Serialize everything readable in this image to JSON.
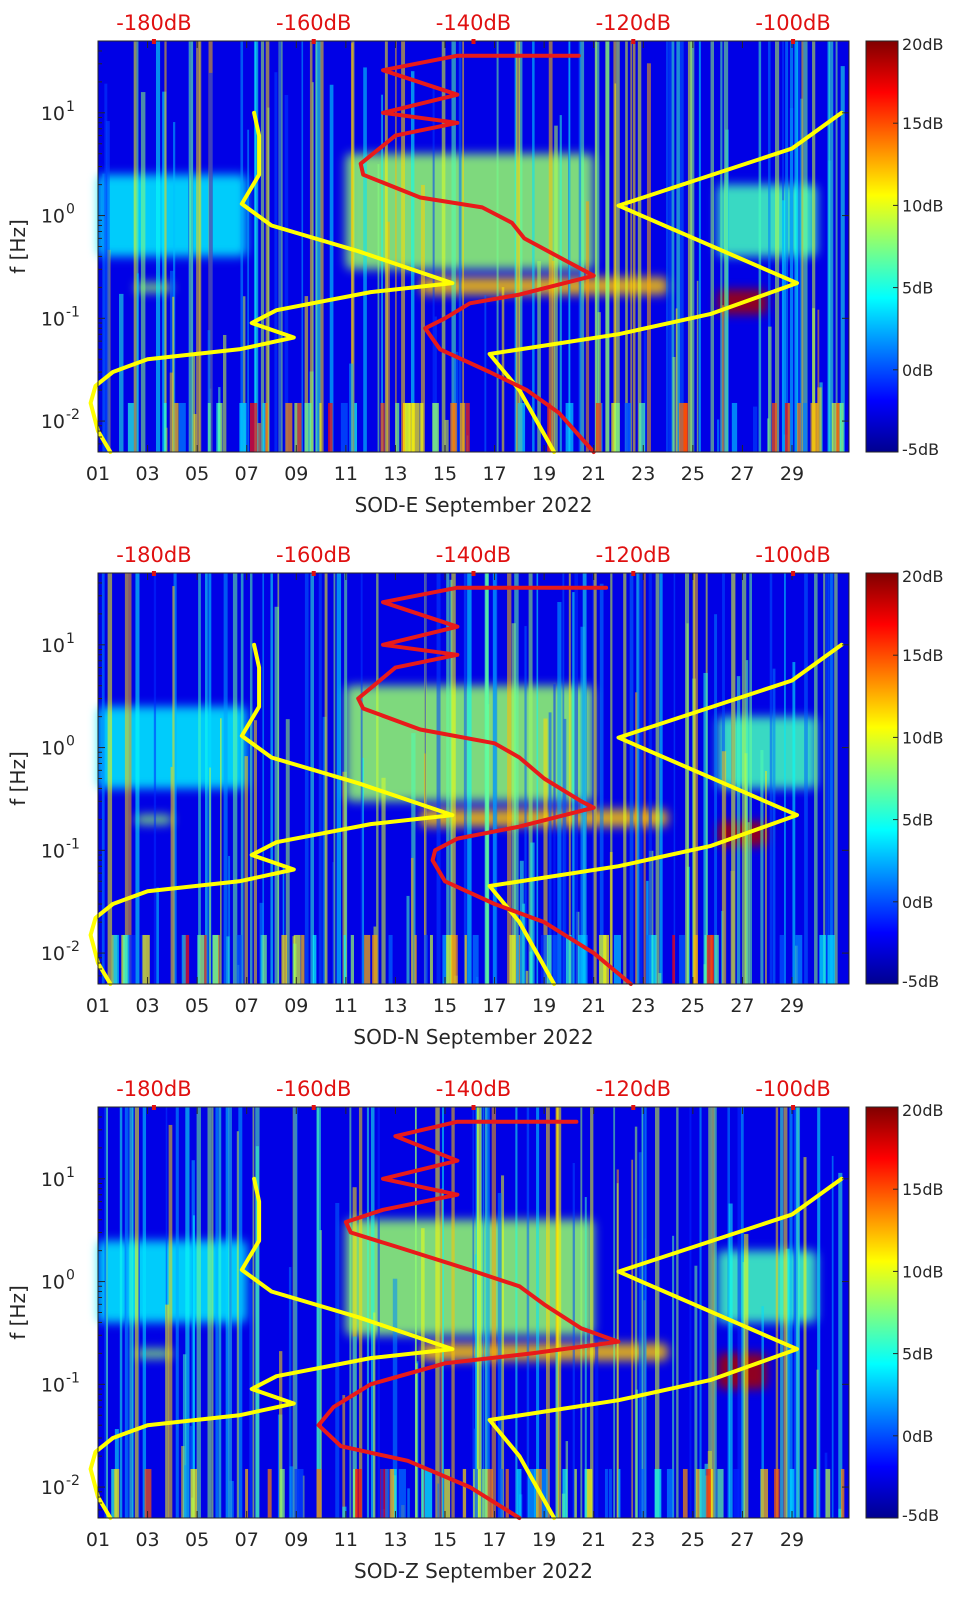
{
  "chart_data": [
    {
      "type": "heatmap",
      "xlabel": "SOD-E September 2022",
      "ylabel": "f [Hz]",
      "x_tick_labels": [
        "01",
        "03",
        "05",
        "07",
        "09",
        "11",
        "13",
        "15",
        "17",
        "19",
        "21",
        "23",
        "25",
        "27",
        "29"
      ],
      "y_tick_labels": [
        "10^{1}",
        "10^{0}",
        "10^{-1}",
        "10^{-2}"
      ],
      "y_ticks": [
        10,
        1,
        0.1,
        0.01
      ],
      "ylim": [
        0.005,
        50
      ],
      "yscale": "log",
      "xlim": [
        1,
        31
      ],
      "top_axis_labels": [
        "-180dB",
        "-160dB",
        "-140dB",
        "-120dB",
        "-100dB"
      ],
      "top_axis_values": [
        -180,
        -160,
        -140,
        -120,
        -100
      ],
      "top_axis_range": [
        -187,
        -93
      ],
      "colorbar_labels": [
        "20dB",
        "15dB",
        "10dB",
        "5dB",
        "0dB",
        "-5dB"
      ],
      "colorbar_values": [
        20,
        15,
        10,
        5,
        0,
        -5
      ],
      "colorbar_range": [
        -5,
        20
      ],
      "colormap": "jet",
      "curve_colors": {
        "model_left": "#ffff00",
        "model_right": "#ffff00",
        "median": "#e81a1a"
      },
      "model_left_curve": [
        [
          7.3,
          10
        ],
        [
          7.5,
          6
        ],
        [
          7.5,
          2.5
        ],
        [
          6.8,
          1.3
        ],
        [
          8,
          0.8
        ],
        [
          11.5,
          0.45
        ],
        [
          15.3,
          0.22
        ],
        [
          12,
          0.18
        ],
        [
          8.2,
          0.12
        ],
        [
          7.2,
          0.09
        ],
        [
          8.9,
          0.065
        ],
        [
          6.7,
          0.05
        ],
        [
          3,
          0.04
        ],
        [
          1.6,
          0.03
        ],
        [
          0.9,
          0.022
        ],
        [
          0.7,
          0.015
        ],
        [
          1,
          0.008
        ],
        [
          1.5,
          0.005
        ]
      ],
      "model_right_curve": [
        [
          31,
          10
        ],
        [
          29,
          4.5
        ],
        [
          22,
          1.25
        ],
        [
          29.2,
          0.22
        ],
        [
          25.7,
          0.11
        ],
        [
          22,
          0.07
        ],
        [
          16.8,
          0.045
        ],
        [
          18,
          0.02
        ],
        [
          19.4,
          0.005
        ]
      ],
      "median_curve": [
        [
          20.4,
          36
        ],
        [
          15.5,
          36
        ],
        [
          12.5,
          26
        ],
        [
          15.5,
          15
        ],
        [
          12.5,
          10
        ],
        [
          15.5,
          8
        ],
        [
          13,
          6
        ],
        [
          11.6,
          3.2
        ],
        [
          11.7,
          2.5
        ],
        [
          14,
          1.5
        ],
        [
          16.5,
          1.2
        ],
        [
          17.7,
          0.85
        ],
        [
          18.2,
          0.6
        ],
        [
          20,
          0.35
        ],
        [
          21,
          0.26
        ],
        [
          18,
          0.17
        ],
        [
          16,
          0.14
        ],
        [
          15,
          0.1
        ],
        [
          14.2,
          0.08
        ],
        [
          14.8,
          0.05
        ],
        [
          16.8,
          0.03
        ],
        [
          18.3,
          0.02
        ],
        [
          19.6,
          0.012
        ],
        [
          21,
          0.005
        ]
      ],
      "spectral_features": [
        {
          "x0": 11,
          "x1": 21,
          "f0": 0.3,
          "f1": 4,
          "level": 8
        },
        {
          "x0": 1,
          "x1": 7,
          "f0": 0.4,
          "f1": 2.5,
          "level": 4
        },
        {
          "x0": 26,
          "x1": 30,
          "f0": 0.4,
          "f1": 2,
          "level": 6
        },
        {
          "x0": 14,
          "x1": 24,
          "f0": 0.17,
          "f1": 0.25,
          "level": 12
        },
        {
          "x0": 26,
          "x1": 28,
          "f0": 0.11,
          "f1": 0.19,
          "level": 19
        },
        {
          "x0": 2.5,
          "x1": 4,
          "f0": 0.18,
          "f1": 0.22,
          "level": 8
        }
      ]
    },
    {
      "type": "heatmap",
      "xlabel": "SOD-N September 2022",
      "ylabel": "f [Hz]",
      "x_tick_labels": [
        "01",
        "03",
        "05",
        "07",
        "09",
        "11",
        "13",
        "15",
        "17",
        "19",
        "21",
        "23",
        "25",
        "27",
        "29"
      ],
      "y_tick_labels": [
        "10^{1}",
        "10^{0}",
        "10^{-1}",
        "10^{-2}"
      ],
      "y_ticks": [
        10,
        1,
        0.1,
        0.01
      ],
      "ylim": [
        0.005,
        50
      ],
      "yscale": "log",
      "xlim": [
        1,
        31
      ],
      "top_axis_labels": [
        "-180dB",
        "-160dB",
        "-140dB",
        "-120dB",
        "-100dB"
      ],
      "top_axis_values": [
        -180,
        -160,
        -140,
        -120,
        -100
      ],
      "top_axis_range": [
        -187,
        -93
      ],
      "colorbar_labels": [
        "20dB",
        "15dB",
        "10dB",
        "5dB",
        "0dB",
        "-5dB"
      ],
      "colorbar_values": [
        20,
        15,
        10,
        5,
        0,
        -5
      ],
      "colorbar_range": [
        -5,
        20
      ],
      "colormap": "jet",
      "curve_colors": {
        "model_left": "#ffff00",
        "model_right": "#ffff00",
        "median": "#e81a1a"
      },
      "model_left_curve": [
        [
          7.3,
          10
        ],
        [
          7.5,
          6
        ],
        [
          7.5,
          2.5
        ],
        [
          6.8,
          1.3
        ],
        [
          8,
          0.8
        ],
        [
          11.5,
          0.45
        ],
        [
          15.3,
          0.22
        ],
        [
          12,
          0.18
        ],
        [
          8.2,
          0.12
        ],
        [
          7.2,
          0.09
        ],
        [
          8.9,
          0.065
        ],
        [
          6.7,
          0.05
        ],
        [
          3,
          0.04
        ],
        [
          1.6,
          0.03
        ],
        [
          0.9,
          0.022
        ],
        [
          0.7,
          0.015
        ],
        [
          1,
          0.008
        ],
        [
          1.5,
          0.005
        ]
      ],
      "model_right_curve": [
        [
          31,
          10
        ],
        [
          29,
          4.5
        ],
        [
          22,
          1.25
        ],
        [
          29.2,
          0.22
        ],
        [
          25.7,
          0.11
        ],
        [
          22,
          0.07
        ],
        [
          16.8,
          0.045
        ],
        [
          18,
          0.02
        ],
        [
          19.4,
          0.005
        ]
      ],
      "median_curve": [
        [
          21.5,
          36
        ],
        [
          15.5,
          36
        ],
        [
          12.5,
          26
        ],
        [
          15.5,
          15
        ],
        [
          12.5,
          10
        ],
        [
          15.5,
          8
        ],
        [
          13,
          6
        ],
        [
          11.5,
          3
        ],
        [
          11.7,
          2.4
        ],
        [
          14,
          1.5
        ],
        [
          17,
          1.1
        ],
        [
          18,
          0.8
        ],
        [
          19,
          0.5
        ],
        [
          20.5,
          0.3
        ],
        [
          21,
          0.26
        ],
        [
          18,
          0.17
        ],
        [
          15.5,
          0.13
        ],
        [
          14.6,
          0.1
        ],
        [
          14.5,
          0.08
        ],
        [
          15,
          0.05
        ],
        [
          17,
          0.03
        ],
        [
          19,
          0.02
        ],
        [
          21,
          0.01
        ],
        [
          22.5,
          0.005
        ]
      ],
      "spectral_features": [
        {
          "x0": 11,
          "x1": 21,
          "f0": 0.3,
          "f1": 4,
          "level": 8
        },
        {
          "x0": 1,
          "x1": 7,
          "f0": 0.4,
          "f1": 2.5,
          "level": 4
        },
        {
          "x0": 26,
          "x1": 30,
          "f0": 0.4,
          "f1": 2,
          "level": 6
        },
        {
          "x0": 14,
          "x1": 24,
          "f0": 0.17,
          "f1": 0.25,
          "level": 12
        },
        {
          "x0": 26,
          "x1": 28,
          "f0": 0.11,
          "f1": 0.19,
          "level": 19
        },
        {
          "x0": 2.5,
          "x1": 4,
          "f0": 0.18,
          "f1": 0.22,
          "level": 8
        }
      ]
    },
    {
      "type": "heatmap",
      "xlabel": "SOD-Z September 2022",
      "ylabel": "f [Hz]",
      "x_tick_labels": [
        "01",
        "03",
        "05",
        "07",
        "09",
        "11",
        "13",
        "15",
        "17",
        "19",
        "21",
        "23",
        "25",
        "27",
        "29"
      ],
      "y_tick_labels": [
        "10^{1}",
        "10^{0}",
        "10^{-1}",
        "10^{-2}"
      ],
      "y_ticks": [
        10,
        1,
        0.1,
        0.01
      ],
      "ylim": [
        0.005,
        50
      ],
      "yscale": "log",
      "xlim": [
        1,
        31
      ],
      "top_axis_labels": [
        "-180dB",
        "-160dB",
        "-140dB",
        "-120dB",
        "-100dB"
      ],
      "top_axis_values": [
        -180,
        -160,
        -140,
        -120,
        -100
      ],
      "top_axis_range": [
        -187,
        -93
      ],
      "colorbar_labels": [
        "20dB",
        "15dB",
        "10dB",
        "5dB",
        "0dB",
        "-5dB"
      ],
      "colorbar_values": [
        20,
        15,
        10,
        5,
        0,
        -5
      ],
      "colorbar_range": [
        -5,
        20
      ],
      "colormap": "jet",
      "curve_colors": {
        "model_left": "#ffff00",
        "model_right": "#ffff00",
        "median": "#e81a1a"
      },
      "model_left_curve": [
        [
          7.3,
          10
        ],
        [
          7.5,
          6
        ],
        [
          7.5,
          2.5
        ],
        [
          6.8,
          1.3
        ],
        [
          8,
          0.8
        ],
        [
          11.5,
          0.45
        ],
        [
          15.3,
          0.22
        ],
        [
          12,
          0.18
        ],
        [
          8.2,
          0.12
        ],
        [
          7.2,
          0.09
        ],
        [
          8.9,
          0.065
        ],
        [
          6.7,
          0.05
        ],
        [
          3,
          0.04
        ],
        [
          1.6,
          0.03
        ],
        [
          0.9,
          0.022
        ],
        [
          0.7,
          0.015
        ],
        [
          1,
          0.008
        ],
        [
          1.5,
          0.005
        ]
      ],
      "model_right_curve": [
        [
          31,
          10
        ],
        [
          29,
          4.5
        ],
        [
          22,
          1.25
        ],
        [
          29.2,
          0.22
        ],
        [
          25.7,
          0.11
        ],
        [
          22,
          0.07
        ],
        [
          16.8,
          0.045
        ],
        [
          18,
          0.02
        ],
        [
          19.4,
          0.005
        ]
      ],
      "median_curve": [
        [
          20.3,
          36
        ],
        [
          15.5,
          36
        ],
        [
          13,
          26
        ],
        [
          15.5,
          15
        ],
        [
          12.5,
          10
        ],
        [
          15.5,
          7
        ],
        [
          12.5,
          5
        ],
        [
          11,
          3.8
        ],
        [
          11.2,
          3
        ],
        [
          13,
          2.2
        ],
        [
          16,
          1.3
        ],
        [
          18,
          0.9
        ],
        [
          19,
          0.6
        ],
        [
          20.5,
          0.35
        ],
        [
          22,
          0.26
        ],
        [
          18.5,
          0.2
        ],
        [
          15,
          0.16
        ],
        [
          12,
          0.1
        ],
        [
          10.5,
          0.06
        ],
        [
          9.9,
          0.04
        ],
        [
          10.8,
          0.025
        ],
        [
          13.5,
          0.018
        ],
        [
          16,
          0.01
        ],
        [
          18,
          0.005
        ]
      ],
      "spectral_features": [
        {
          "x0": 11,
          "x1": 21,
          "f0": 0.3,
          "f1": 4,
          "level": 8
        },
        {
          "x0": 1,
          "x1": 7,
          "f0": 0.4,
          "f1": 2.5,
          "level": 4
        },
        {
          "x0": 26,
          "x1": 30,
          "f0": 0.4,
          "f1": 2,
          "level": 6
        },
        {
          "x0": 14,
          "x1": 24,
          "f0": 0.17,
          "f1": 0.25,
          "level": 12
        },
        {
          "x0": 26,
          "x1": 28,
          "f0": 0.09,
          "f1": 0.2,
          "level": 19
        },
        {
          "x0": 2.5,
          "x1": 4,
          "f0": 0.18,
          "f1": 0.22,
          "level": 8
        }
      ]
    }
  ]
}
